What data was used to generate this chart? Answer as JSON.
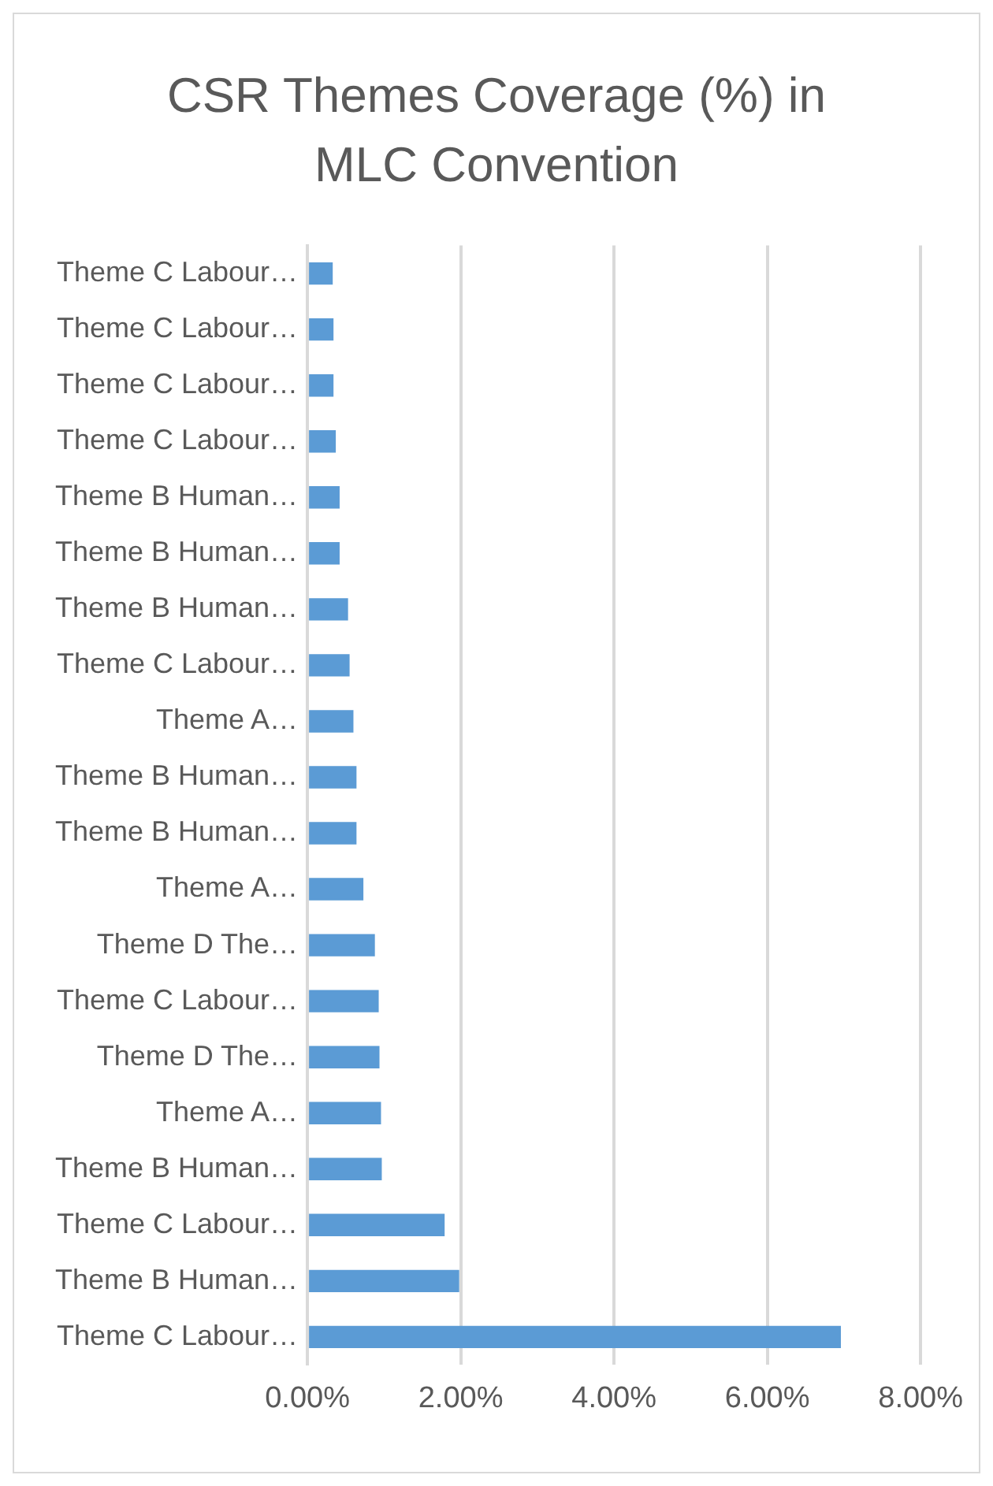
{
  "chart_data": {
    "type": "bar",
    "orientation": "horizontal",
    "title": "CSR Themes Coverage (%) in MLC Convention",
    "categories": [
      "Theme C Labour…",
      "Theme C Labour…",
      "Theme C Labour…",
      "Theme C Labour…",
      "Theme B Human…",
      "Theme B Human…",
      "Theme B Human…",
      "Theme C Labour…",
      "Theme A…",
      "Theme B Human…",
      "Theme B Human…",
      "Theme A…",
      "Theme D The…",
      "Theme C Labour…",
      "Theme D The…",
      "Theme A…",
      "Theme B Human…",
      "Theme C Labour…",
      "Theme B Human…",
      "Theme C Labour…"
    ],
    "values": [
      0.33,
      0.34,
      0.34,
      0.37,
      0.42,
      0.42,
      0.53,
      0.55,
      0.6,
      0.64,
      0.64,
      0.73,
      0.88,
      0.93,
      0.94,
      0.96,
      0.97,
      1.79,
      1.98,
      6.96
    ],
    "color": "#5b9bd5",
    "xlim": [
      0,
      8
    ],
    "xticks": [
      {
        "value": 0,
        "label": "0.00%"
      },
      {
        "value": 2,
        "label": "2.00%"
      },
      {
        "value": 4,
        "label": "4.00%"
      },
      {
        "value": 6,
        "label": "6.00%"
      },
      {
        "value": 8,
        "label": "8.00%"
      }
    ],
    "grid": "x",
    "legend": false
  }
}
